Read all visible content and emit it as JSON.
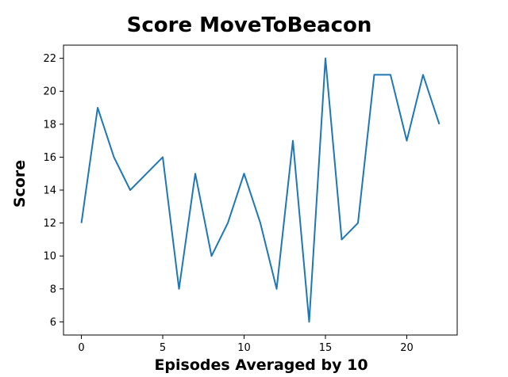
{
  "chart_data": {
    "type": "line",
    "title": "Score MoveToBeacon",
    "xlabel": "Episodes Averaged by 10",
    "ylabel": "Score",
    "x": [
      0,
      1,
      2,
      3,
      4,
      5,
      6,
      7,
      8,
      9,
      10,
      11,
      12,
      13,
      14,
      15,
      16,
      17,
      18,
      19,
      20,
      21,
      22
    ],
    "series": [
      {
        "values": [
          12,
          19,
          16,
          14,
          15,
          16,
          8,
          15,
          10,
          12,
          15,
          12,
          8,
          17,
          6,
          22,
          11,
          12,
          21,
          21,
          17,
          21,
          18
        ],
        "color": "#1f77b4"
      }
    ],
    "xlim": [
      -1.1,
      23.1
    ],
    "ylim": [
      5.2,
      22.8
    ],
    "xticks": [
      0,
      5,
      10,
      15,
      20
    ],
    "yticks": [
      6,
      8,
      10,
      12,
      14,
      16,
      18,
      20,
      22
    ],
    "grid": false,
    "legend": "none"
  }
}
